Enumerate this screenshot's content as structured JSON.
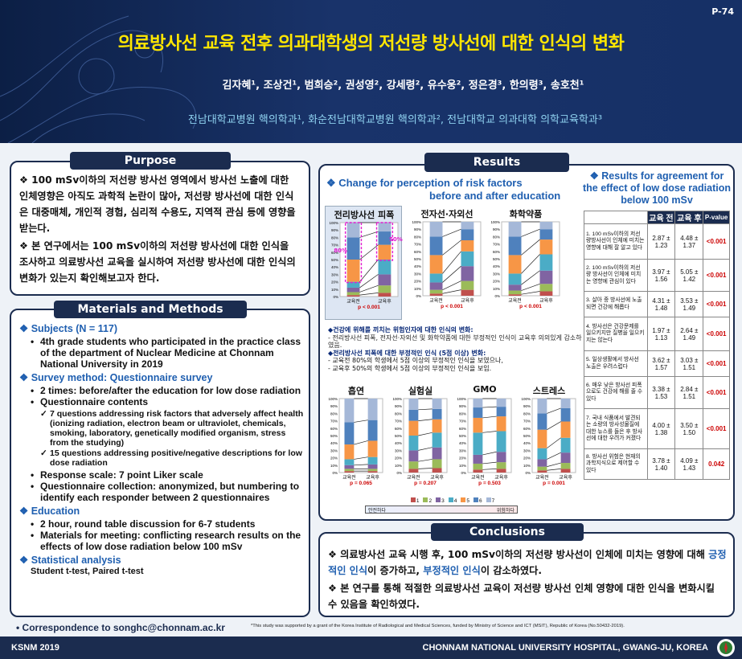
{
  "poster": {
    "id": "P-74",
    "title": "의료방사선 교육 전후 의과대학생의 저선량 방사선에 대한 인식의 변화",
    "authors": "김자혜¹, 조상건¹, 범희승², 권성영², 강세령², 유수웅², 정은경³, 한의령³, 송호천¹",
    "affiliations": "전남대학교병원 핵의학과¹, 화순전남대학교병원 핵의학과², 전남대학교 의과대학 의학교육학과³"
  },
  "purpose": {
    "heading": "Purpose",
    "items": [
      "100 mSv이하의 저선량 방사선 영역에서 방사선 노출에 대한 인체영향은 아직도 과학적 논란이 많아, 저선량 방사선에 대한 인식은 대중매체, 개인적 경험, 심리적 수용도, 지역적 관심 등에 영향을 받는다.",
      "본 연구에서는 100 mSv이하의 저선량 방사선에 대한 인식을 조사하고 의료방사선 교육을 실시하여 저선량 방사선에 대한 인식의 변화가 있는지 확인해보고자 한다."
    ]
  },
  "methods": {
    "heading": "Materials and Methods",
    "subjects_h": "Subjects (N = 117)",
    "subjects": "4th grade students who participated in the practice class of the department of Nuclear Medicine at Chonnam National University in 2019",
    "survey_h": "Survey method: Questionnaire survey",
    "survey": [
      "2 times: before/after the education for low dose radiation",
      "Questionnaire contents"
    ],
    "contents": [
      "7 questions addressing risk factors that adversely affect health (ionizing radiation, electron beam or ultraviolet, chemicals, smoking, laboratory, genetically modified organism, stress from the studying)",
      "15 questions addressing positive/negative descriptions for low dose radiation"
    ],
    "survey2": [
      "Response scale: 7 point Liker scale",
      "Questionnaire collection: anonymized, but numbering to identify each responder between 2 questionnaires"
    ],
    "edu_h": "Education",
    "edu": [
      "2 hour, round table discussion for 6-7 students",
      "Materials for meeting: conflicting research results on the effects of low dose radiation below 100 mSv"
    ],
    "stat_h": "Statistical analysis",
    "stat": "Student t-test, Paired t-test"
  },
  "results": {
    "heading": "Results",
    "change_title1": "Change for perception of risk factors",
    "change_title2": "before and after education",
    "top_panels": [
      {
        "title": "전리방사선 피폭",
        "p": "p < 0.001"
      },
      {
        "title": "전자선·자외선",
        "p": "p < 0.001"
      },
      {
        "title": "화학약품",
        "p": "p < 0.001"
      }
    ],
    "bottom_panels": [
      {
        "title": "흡연",
        "p": "p = 0.065"
      },
      {
        "title": "실험실",
        "p": "p = 0.207"
      },
      {
        "title": "GMO",
        "p": "p = 0.503"
      },
      {
        "title": "스트레스",
        "p": "p = 0.001"
      }
    ],
    "pct_before": "80%",
    "pct_after": "50%",
    "x_before": "교육전",
    "x_after": "교육후",
    "yticks": [
      "100%",
      "90%",
      "80%",
      "70%",
      "60%",
      "50%",
      "40%",
      "30%",
      "20%",
      "10%",
      "0%"
    ],
    "legend": [
      "1",
      "2",
      "3",
      "4",
      "5",
      "6",
      "7"
    ],
    "legend_safe": "안전하다",
    "legend_danger": "위험하다",
    "note1_h": "◆건강에 위해를 끼치는 위험인자에 대한 인식의 변화:",
    "note1": "- 전리방사선 피폭, 전자선·자외선 및 화학약품에 대한 부정적인 인식이 교육후 의의있게 감소하였음.",
    "note2_h": "◆전리방사선 피폭에 대한 부정적인 인식 (5점 이상) 변화:",
    "note2a": "- 교육전 80%의 학생에서 5점 이상의 부정적인 인식을 보였으나,",
    "note2b": "- 교육후 50%의 학생에서 5점 이상의 부정적인 인식을 보임."
  },
  "agreement": {
    "title": "Results for agreement for the effect of low dose radiation below 100 mSv",
    "cols": [
      "교육 전",
      "교육 후",
      "P-value"
    ],
    "rows": [
      {
        "q": "1. 100 mSv이하의 저선량방사선이 인체에 미치는 영향에 대해 잘 알고 있다",
        "pre": "2.87 ± 1.23",
        "post": "4.48 ± 1.37",
        "p": "<0.001"
      },
      {
        "q": "2. 100 mSv이하의 저선량 방사선이 인체에 미치는 영향에 관심이 있다",
        "pre": "3.97 ± 1.56",
        "post": "5.05 ± 1.42",
        "p": "<0.001"
      },
      {
        "q": "3. 살아 중 방사선에 노출되면 건강에 해롭다",
        "pre": "4.31 ± 1.48",
        "post": "3.53 ± 1.49",
        "p": "<0.001"
      },
      {
        "q": "4. 방사선은 건강문제를 일으키지만 질병을 일으키지는 않는다",
        "pre": "1.97 ± 1.13",
        "post": "2.64 ± 1.49",
        "p": "<0.001"
      },
      {
        "q": "5. 일상생활에서 방사선 노출은 우려스럽다",
        "pre": "3.62 ± 1.57",
        "post": "3.03 ± 1.51",
        "p": "<0.001"
      },
      {
        "q": "6. 매우 낮은 방사선 피폭으로도 건강에 해를 줄 수 있다",
        "pre": "3.38 ± 1.53",
        "post": "2.84 ± 1.51",
        "p": "<0.001"
      },
      {
        "q": "7. 국내 식품에서 발견되는 소량의 방사성물질에 대한 뉴스를 들은 후 방사선에 대한 우려가 커졌다",
        "pre": "4.00 ± 1.38",
        "post": "3.50 ± 1.50",
        "p": "<0.001"
      },
      {
        "q": "8. 방사선 위험은 현재의 과학지식으로 제어할 수 있다",
        "pre": "3.78 ± 1.40",
        "post": "4.09 ± 1.43",
        "p": "0.042"
      }
    ]
  },
  "conclusions": {
    "heading": "Conclusions",
    "c1a": "의료방사선 교육 시행 후, 100 mSv이하의 저선량 방사선이 인체에 미치는 영향에 대해 ",
    "c1pos": "긍정적인 인식",
    "c1b": "이 증가하고, ",
    "c1neg": "부정적인 인식",
    "c1c": "이 감소하였다.",
    "c2": "본 연구를 통해 적절한 의료방사선 교육이 저선량 방사선 인체 영향에 대한 인식을 변화시킬 수 있음을 확인하였다."
  },
  "footer": {
    "correspondence": "• Correspondence to songhc@chonnam.ac.kr",
    "support": "*This study was supported by a grant of the Korea Institute of Radiological and Medical Sciences, funded by Ministry of Science and ICT (MSIT), Republic of Korea (No.50432-2019).",
    "left": "KSNM 2019",
    "right": "CHONNAM NATIONAL UNIVERSITY HOSPITAL, GWANG-JU, KOREA"
  },
  "colors": {
    "navy": "#1b2c4f",
    "title": "#ffe600",
    "affil": "#8fd2f0",
    "accent": "#1f5fb0",
    "p_red": "#cc0000"
  },
  "chart_data": {
    "type": "bar",
    "stacked": true,
    "categories": [
      "교육전",
      "교육후"
    ],
    "series_colors": [
      "#c0504d",
      "#9bbb59",
      "#8064a2",
      "#4bacc6",
      "#f79646",
      "#4f81bd",
      "#a5b8d8"
    ],
    "legend": [
      "1",
      "2",
      "3",
      "4",
      "5",
      "6",
      "7"
    ]
  }
}
